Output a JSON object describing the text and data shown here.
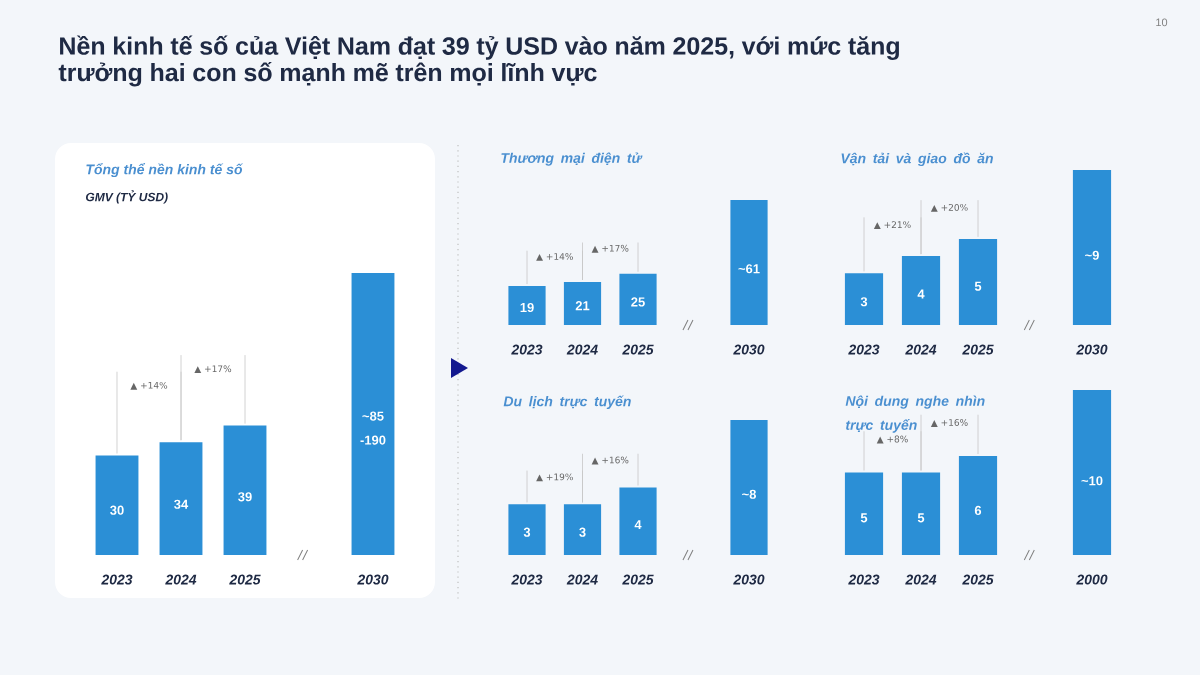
{
  "chart_data": [
    {
      "type": "bar",
      "title": "Nền kinh tế số của Việt Nam đạt 39 tỷ USD vào năm 2025, với mức tăng trưởng hai con số mạnh mẽ trên mọi lĩnh vực",
      "subtitle": "Tổng thể nền kinh tế số",
      "ylabel": "GMV (TỶ USD)",
      "categories": [
        "2023",
        "2024",
        "2025",
        "2030"
      ],
      "values": [
        30,
        34,
        39,
        85
      ],
      "value_labels": [
        "30",
        "34",
        "39",
        "~85 -190"
      ],
      "color": "#2b8fd6",
      "annotations": [
        "▲ +14%",
        "▲ +17%",
        "10"
      ]
    },
    {
      "type": "bar",
      "title": "Thương mại điện tử",
      "categories": [
        "2023",
        "2024",
        "2025",
        "2030"
      ],
      "values": [
        19,
        21,
        25,
        61
      ],
      "value_labels": [
        "19",
        "21",
        "25",
        "~61"
      ],
      "color": "#2b8fd6",
      "annotations": [
        "▲ +14%",
        "▲ +17%"
      ]
    },
    {
      "type": "bar",
      "title": "Vận tải và giao đồ ăn",
      "categories": [
        "2023",
        "2024",
        "2025",
        "2030"
      ],
      "values": [
        3,
        4,
        5,
        9
      ],
      "value_labels": [
        "3",
        "4",
        "5",
        "~9"
      ],
      "color": "#2b8fd6",
      "annotations": [
        "▲ +21%",
        "▲ +20%"
      ]
    },
    {
      "type": "bar",
      "title": "Du lịch trực tuyến",
      "categories": [
        "2023",
        "2024",
        "2025",
        "2030"
      ],
      "values": [
        3,
        3,
        4,
        8
      ],
      "value_labels": [
        "3",
        "3",
        "4",
        "~8"
      ],
      "color": "#2b8fd6",
      "annotations": [
        "▲ +19%",
        "▲ +16%"
      ]
    },
    {
      "type": "bar",
      "title": "Nội dung nghe nhìn trực tuyến",
      "categories": [
        "2023",
        "2024",
        "2025",
        "2000"
      ],
      "values": [
        5,
        5,
        6,
        10
      ],
      "value_labels": [
        "5",
        "5",
        "6",
        "~10"
      ],
      "color": "#2b8fd6",
      "annotations": [
        "▲ +8%",
        "▲ +16%"
      ]
    }
  ]
}
